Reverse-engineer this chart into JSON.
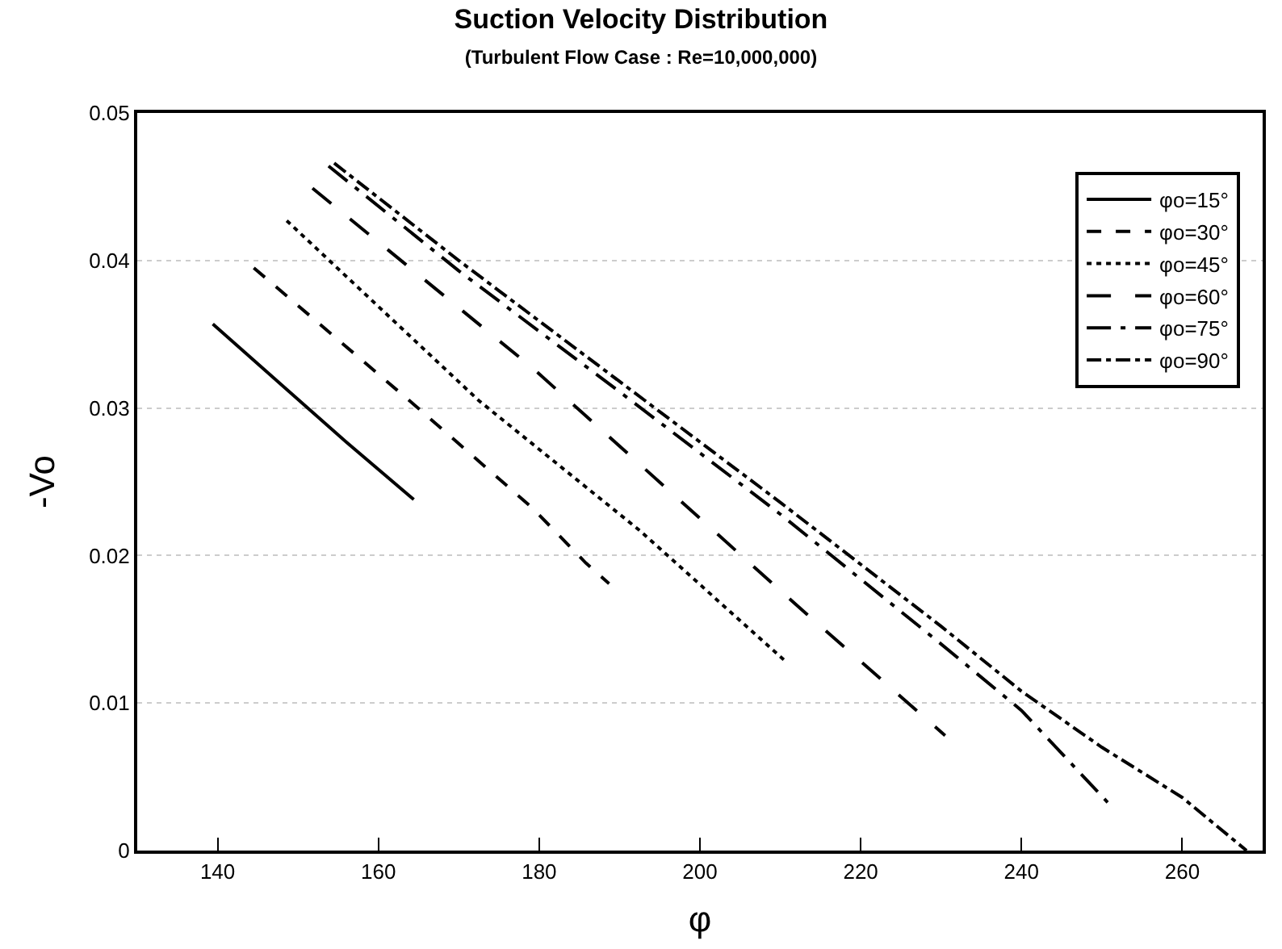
{
  "chart_data": {
    "type": "line",
    "title": "Suction Velocity Distribution",
    "subtitle": "(Turbulent Flow Case : Re=10,000,000)",
    "xlabel": "φ",
    "ylabel": "-Vo",
    "xlim": [
      130,
      270
    ],
    "xticks": [
      140,
      160,
      180,
      200,
      220,
      240,
      260
    ],
    "ylim": [
      0,
      0.05
    ],
    "yticks": [
      0,
      0.01,
      0.02,
      0.03,
      0.04,
      0.05
    ],
    "grid": "y",
    "legend": "top right",
    "marker": "none",
    "series": [
      {
        "name": "φo=15°",
        "color": "#000000",
        "line_style": "solid",
        "x": [
          139.4,
          148.5,
          156,
          164.4
        ],
        "values": [
          0.0357,
          0.0313,
          0.0277,
          0.0238
        ]
      },
      {
        "name": "φo=30°",
        "color": "#000000",
        "line_style": "dashed",
        "x": [
          144.5,
          164.5,
          179.2,
          185.8,
          188.7
        ],
        "values": [
          0.0395,
          0.0302,
          0.0232,
          0.0195,
          0.0181
        ]
      },
      {
        "name": "φo=45°",
        "color": "#000000",
        "line_style": "dotted",
        "x": [
          148.6,
          172.5,
          192.5,
          210.5
        ],
        "values": [
          0.0427,
          0.0305,
          0.0217,
          0.0129
        ]
      },
      {
        "name": "φo=60°",
        "color": "#000000",
        "line_style": "longdash",
        "x": [
          151.8,
          179.2,
          212.1,
          230.5
        ],
        "values": [
          0.0449,
          0.0327,
          0.0166,
          0.0078
        ]
      },
      {
        "name": "φo=75°",
        "color": "#000000",
        "line_style": "longdashdot",
        "x": [
          153.8,
          170,
          190,
          210,
          230,
          240,
          251
        ],
        "values": [
          0.0464,
          0.0393,
          0.0311,
          0.0228,
          0.014,
          0.0095,
          0.0031
        ]
      },
      {
        "name": "φo=90°",
        "color": "#000000",
        "line_style": "dashdot",
        "x": [
          154.5,
          170,
          190,
          210,
          230,
          240,
          250,
          260,
          268
        ],
        "values": [
          0.0466,
          0.04,
          0.0318,
          0.0236,
          0.0152,
          0.0108,
          0.007,
          0.0036,
          0.0
        ]
      }
    ]
  }
}
